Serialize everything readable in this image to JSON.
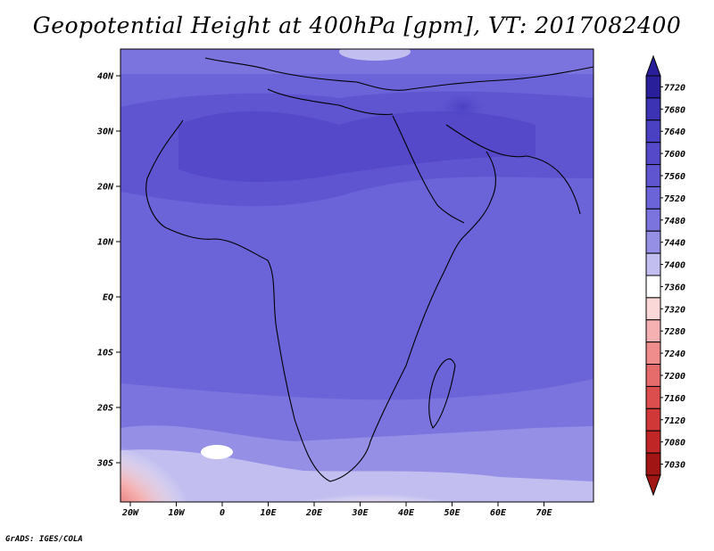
{
  "title": "Geopotential Height at 400hPa [gpm], VT: 2017082400",
  "footer": "GrADS: IGES/COLA",
  "map": {
    "lat_ticks": [
      "40N",
      "30N",
      "20N",
      "10N",
      "EQ",
      "10S",
      "20S",
      "30S"
    ],
    "lon_ticks": [
      "20W",
      "10W",
      "0",
      "10E",
      "20E",
      "30E",
      "40E",
      "50E",
      "60E",
      "70E"
    ]
  },
  "colorbar": {
    "levels": [
      "7720",
      "7680",
      "7640",
      "7600",
      "7560",
      "7520",
      "7480",
      "7440",
      "7400",
      "7360",
      "7320",
      "7280",
      "7240",
      "7200",
      "7160",
      "7120",
      "7080",
      "7030"
    ],
    "colors": [
      "#2a1f9a",
      "#3c32b4",
      "#4a40c2",
      "#5548c9",
      "#5f55d1",
      "#6b63d8",
      "#7b74de",
      "#968fe6",
      "#c2bff0",
      "#ffffff",
      "#fbd8d8",
      "#f5b1b1",
      "#ef8d8d",
      "#e66c6c",
      "#dc4e4e",
      "#d03838",
      "#c02626",
      "#a11515"
    ]
  }
}
